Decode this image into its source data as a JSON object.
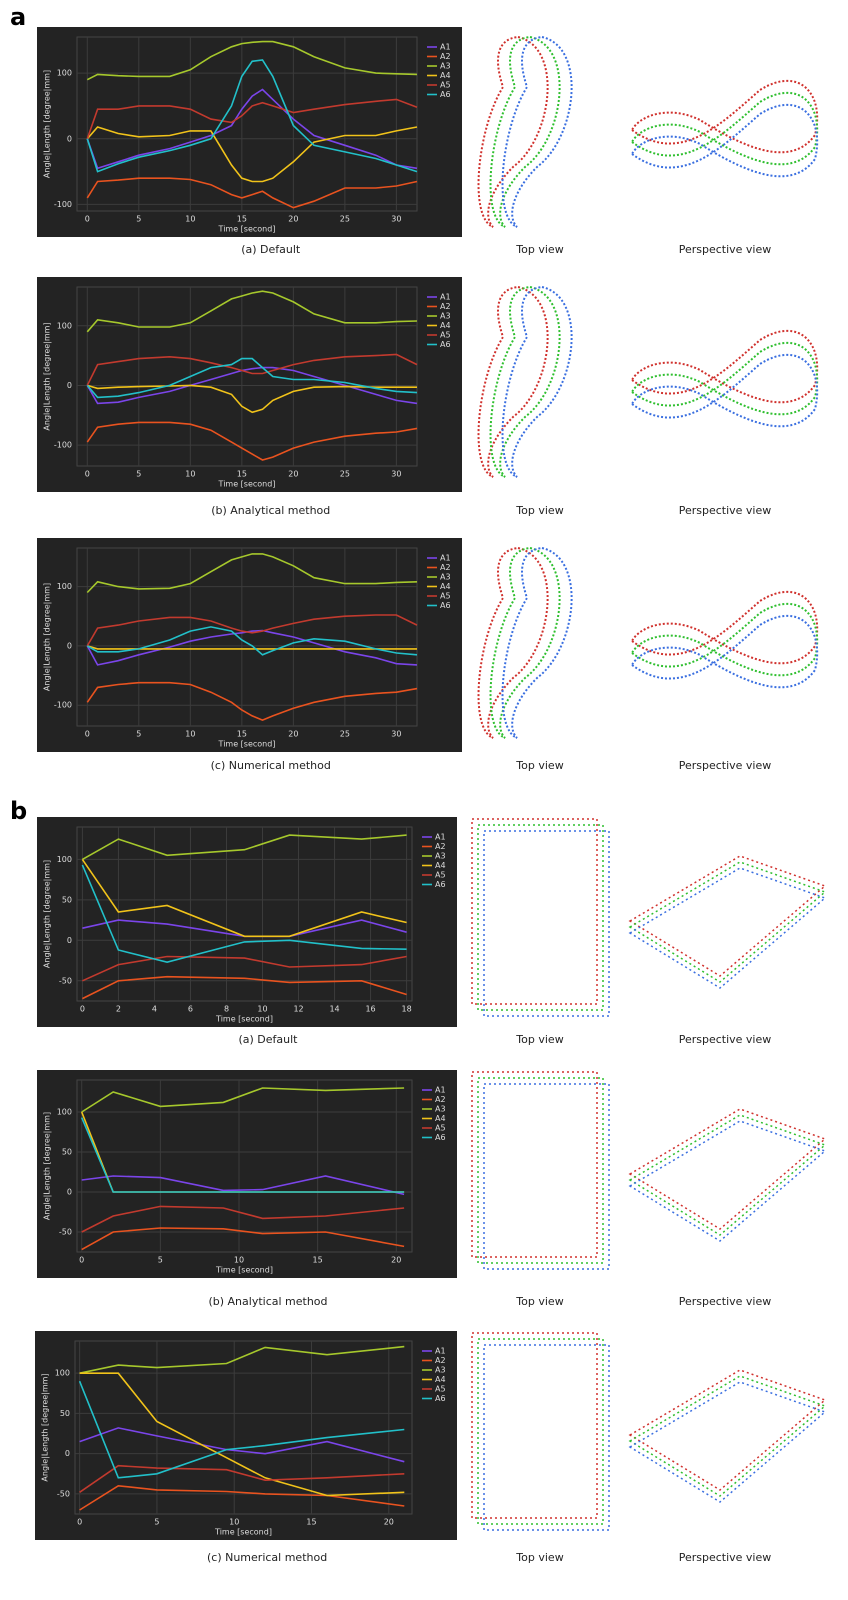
{
  "section_labels": [
    "a",
    "b"
  ],
  "view_labels": [
    [
      "Top view",
      "Perspective view"
    ],
    [
      "Top view",
      "Perspective view"
    ],
    [
      "Top view",
      "Perspective view"
    ],
    [
      "Top view",
      "Perspective view"
    ],
    [
      "Top view",
      "Perspective view"
    ],
    [
      "Top view",
      "Perspective view"
    ]
  ],
  "chart_data": [
    {
      "type": "line",
      "caption": "(a)  Default",
      "xlabel": "Time [second]",
      "ylabel": "Angle|Length [degree|mm]",
      "grid": true,
      "x": [
        0,
        1,
        3,
        5,
        8,
        10,
        12,
        14,
        15,
        16,
        17,
        18,
        20,
        22,
        25,
        28,
        30,
        32
      ],
      "xlim": [
        -1,
        32
      ],
      "xticks": [
        0,
        5,
        10,
        15,
        20,
        25,
        30
      ],
      "ylim": [
        -110,
        155
      ],
      "yticks": [
        -100,
        0,
        100
      ],
      "series": [
        {
          "name": "A1",
          "color": "#7b45ea",
          "values": [
            0,
            -45,
            -35,
            -25,
            -15,
            -5,
            5,
            20,
            45,
            65,
            75,
            60,
            30,
            5,
            -10,
            -25,
            -40,
            -45
          ]
        },
        {
          "name": "A2",
          "color": "#e9531f",
          "values": [
            -90,
            -65,
            -63,
            -60,
            -60,
            -62,
            -70,
            -85,
            -90,
            -85,
            -80,
            -90,
            -105,
            -95,
            -75,
            -75,
            -72,
            -65
          ]
        },
        {
          "name": "A3",
          "color": "#a6c82c",
          "values": [
            90,
            98,
            96,
            95,
            95,
            105,
            125,
            140,
            145,
            147,
            148,
            148,
            140,
            125,
            108,
            100,
            99,
            98
          ]
        },
        {
          "name": "A4",
          "color": "#f1c31a",
          "values": [
            0,
            18,
            8,
            3,
            5,
            12,
            12,
            -40,
            -60,
            -65,
            -65,
            -60,
            -35,
            -5,
            5,
            5,
            12,
            18
          ]
        },
        {
          "name": "A5",
          "color": "#c23a2e",
          "values": [
            0,
            45,
            45,
            50,
            50,
            45,
            30,
            25,
            35,
            50,
            55,
            50,
            40,
            45,
            52,
            57,
            60,
            48
          ]
        },
        {
          "name": "A6",
          "color": "#22c0c9",
          "values": [
            0,
            -50,
            -38,
            -28,
            -18,
            -10,
            0,
            50,
            95,
            118,
            120,
            95,
            20,
            -10,
            -20,
            -30,
            -40,
            -50
          ]
        }
      ]
    },
    {
      "type": "line",
      "caption": "(b)  Analytical method",
      "xlabel": "Time [second]",
      "ylabel": "Angle|Length [degree|mm]",
      "grid": true,
      "x": [
        0,
        1,
        3,
        5,
        8,
        10,
        12,
        14,
        15,
        16,
        17,
        18,
        20,
        22,
        25,
        28,
        30,
        32
      ],
      "xlim": [
        -1,
        32
      ],
      "xticks": [
        0,
        5,
        10,
        15,
        20,
        25,
        30
      ],
      "ylim": [
        -135,
        165
      ],
      "yticks": [
        -100,
        0,
        100
      ],
      "series": [
        {
          "name": "A1",
          "color": "#7b45ea",
          "values": [
            0,
            -30,
            -28,
            -20,
            -10,
            0,
            10,
            20,
            25,
            28,
            30,
            30,
            25,
            15,
            0,
            -15,
            -25,
            -30
          ]
        },
        {
          "name": "A2",
          "color": "#e9531f",
          "values": [
            -95,
            -70,
            -65,
            -62,
            -62,
            -65,
            -75,
            -95,
            -105,
            -115,
            -125,
            -120,
            -105,
            -95,
            -85,
            -80,
            -78,
            -72
          ]
        },
        {
          "name": "A3",
          "color": "#a6c82c",
          "values": [
            90,
            110,
            105,
            98,
            98,
            105,
            125,
            145,
            150,
            155,
            158,
            155,
            140,
            120,
            105,
            105,
            107,
            108
          ]
        },
        {
          "name": "A4",
          "color": "#f1c31a",
          "values": [
            0,
            -5,
            -3,
            -2,
            -1,
            0,
            -3,
            -15,
            -35,
            -45,
            -40,
            -25,
            -10,
            -3,
            -2,
            -3,
            -3,
            -3
          ]
        },
        {
          "name": "A5",
          "color": "#c23a2e",
          "values": [
            0,
            35,
            40,
            45,
            48,
            45,
            38,
            30,
            25,
            20,
            20,
            25,
            35,
            42,
            48,
            50,
            52,
            35
          ]
        },
        {
          "name": "A6",
          "color": "#22c0c9",
          "values": [
            0,
            -20,
            -18,
            -12,
            0,
            15,
            30,
            35,
            45,
            45,
            30,
            15,
            10,
            10,
            5,
            -5,
            -10,
            -12
          ]
        }
      ]
    },
    {
      "type": "line",
      "caption": "(c)  Numerical method",
      "xlabel": "Time [second]",
      "ylabel": "Angle|Length [degree|mm]",
      "grid": true,
      "x": [
        0,
        1,
        3,
        5,
        8,
        10,
        12,
        14,
        15,
        16,
        17,
        18,
        20,
        22,
        25,
        28,
        30,
        32
      ],
      "xlim": [
        -1,
        32
      ],
      "xticks": [
        0,
        5,
        10,
        15,
        20,
        25,
        30
      ],
      "ylim": [
        -135,
        165
      ],
      "yticks": [
        -100,
        0,
        100
      ],
      "series": [
        {
          "name": "A1",
          "color": "#7b45ea",
          "values": [
            0,
            -32,
            -25,
            -15,
            -2,
            8,
            15,
            20,
            22,
            25,
            26,
            22,
            15,
            5,
            -10,
            -20,
            -30,
            -32
          ]
        },
        {
          "name": "A2",
          "color": "#e9531f",
          "values": [
            -95,
            -70,
            -65,
            -62,
            -62,
            -65,
            -78,
            -95,
            -108,
            -118,
            -125,
            -118,
            -105,
            -95,
            -85,
            -80,
            -78,
            -72
          ]
        },
        {
          "name": "A3",
          "color": "#a6c82c",
          "values": [
            90,
            108,
            100,
            96,
            97,
            105,
            125,
            145,
            150,
            155,
            155,
            150,
            135,
            115,
            105,
            105,
            107,
            108
          ]
        },
        {
          "name": "A4",
          "color": "#f1c31a",
          "values": [
            0,
            -5,
            -5,
            -5,
            -5,
            -5,
            -5,
            -5,
            -5,
            -5,
            -5,
            -5,
            -5,
            -5,
            -5,
            -5,
            -5,
            -5
          ]
        },
        {
          "name": "A5",
          "color": "#c23a2e",
          "values": [
            0,
            30,
            35,
            42,
            48,
            48,
            42,
            30,
            25,
            22,
            25,
            30,
            38,
            45,
            50,
            52,
            52,
            35
          ]
        },
        {
          "name": "A6",
          "color": "#22c0c9",
          "values": [
            0,
            -10,
            -10,
            -5,
            10,
            25,
            32,
            25,
            10,
            0,
            -15,
            -8,
            5,
            12,
            8,
            -5,
            -12,
            -15
          ]
        }
      ]
    },
    {
      "type": "line",
      "caption": "(a)  Default",
      "xlabel": "Time [second]",
      "ylabel": "Angle|Length [degree|mm]",
      "grid": true,
      "x": [
        0,
        2,
        4.7,
        9,
        11.5,
        15.5,
        18
      ],
      "xlim": [
        -0.3,
        18.3
      ],
      "xticks": [
        0,
        2,
        4,
        6,
        8,
        10,
        12,
        14,
        16,
        18
      ],
      "ylim": [
        -75,
        140
      ],
      "yticks": [
        -50,
        0,
        50,
        100
      ],
      "series": [
        {
          "name": "A1",
          "color": "#7b45ea",
          "values": [
            15,
            25,
            20,
            5,
            5,
            25,
            10
          ]
        },
        {
          "name": "A2",
          "color": "#e9531f",
          "values": [
            -72,
            -50,
            -45,
            -47,
            -52,
            -50,
            -67
          ]
        },
        {
          "name": "A3",
          "color": "#a6c82c",
          "values": [
            100,
            125,
            105,
            112,
            130,
            125,
            130
          ]
        },
        {
          "name": "A4",
          "color": "#f1c31a",
          "values": [
            100,
            35,
            43,
            5,
            5,
            35,
            22
          ]
        },
        {
          "name": "A5",
          "color": "#c23a2e",
          "values": [
            -50,
            -30,
            -20,
            -22,
            -33,
            -30,
            -20
          ]
        },
        {
          "name": "A6",
          "color": "#22c0c9",
          "values": [
            93,
            -12,
            -27,
            -2,
            0,
            -10,
            -11
          ]
        }
      ]
    },
    {
      "type": "line",
      "caption": "(b)  Analytical method",
      "xlabel": "Time [second]",
      "ylabel": "Angle|Length [degree|mm]",
      "grid": true,
      "x": [
        0,
        2,
        5,
        9,
        11.5,
        15.5,
        20.5
      ],
      "xlim": [
        -0.3,
        21
      ],
      "xticks": [
        0,
        5,
        10,
        15,
        20
      ],
      "ylim": [
        -75,
        140
      ],
      "yticks": [
        -50,
        0,
        50,
        100
      ],
      "series": [
        {
          "name": "A1",
          "color": "#7b45ea",
          "values": [
            15,
            20,
            18,
            2,
            3,
            20,
            -3
          ]
        },
        {
          "name": "A2",
          "color": "#e9531f",
          "values": [
            -72,
            -50,
            -45,
            -46,
            -52,
            -50,
            -68
          ]
        },
        {
          "name": "A3",
          "color": "#a6c82c",
          "values": [
            100,
            125,
            107,
            112,
            130,
            127,
            130
          ]
        },
        {
          "name": "A4",
          "color": "#f1c31a",
          "values": [
            100,
            0,
            0,
            0,
            0,
            0,
            0
          ]
        },
        {
          "name": "A5",
          "color": "#c23a2e",
          "values": [
            -50,
            -30,
            -18,
            -20,
            -33,
            -30,
            -20
          ]
        },
        {
          "name": "A6",
          "color": "#22c0c9",
          "values": [
            93,
            0,
            0,
            0,
            0,
            0,
            0
          ]
        }
      ]
    },
    {
      "type": "line",
      "caption": "(c)  Numerical method",
      "xlabel": "Time [second]",
      "ylabel": "Angle|Length [degree|mm]",
      "grid": true,
      "x": [
        0,
        2.5,
        5,
        9.5,
        12,
        16,
        21
      ],
      "xlim": [
        -0.3,
        21.5
      ],
      "xticks": [
        0,
        5,
        10,
        15,
        20
      ],
      "ylim": [
        -75,
        140
      ],
      "yticks": [
        -50,
        0,
        50,
        100
      ],
      "series": [
        {
          "name": "A1",
          "color": "#7b45ea",
          "values": [
            15,
            32,
            22,
            5,
            0,
            15,
            -10
          ]
        },
        {
          "name": "A2",
          "color": "#e9531f",
          "values": [
            -70,
            -40,
            -45,
            -47,
            -50,
            -52,
            -65
          ]
        },
        {
          "name": "A3",
          "color": "#a6c82c",
          "values": [
            100,
            110,
            107,
            112,
            132,
            123,
            133
          ]
        },
        {
          "name": "A4",
          "color": "#f1c31a",
          "values": [
            100,
            100,
            40,
            -5,
            -30,
            -52,
            -48
          ]
        },
        {
          "name": "A5",
          "color": "#c23a2e",
          "values": [
            -48,
            -15,
            -18,
            -20,
            -33,
            -30,
            -25
          ]
        },
        {
          "name": "A6",
          "color": "#22c0c9",
          "values": [
            90,
            -30,
            -25,
            5,
            10,
            20,
            30
          ]
        }
      ]
    }
  ]
}
